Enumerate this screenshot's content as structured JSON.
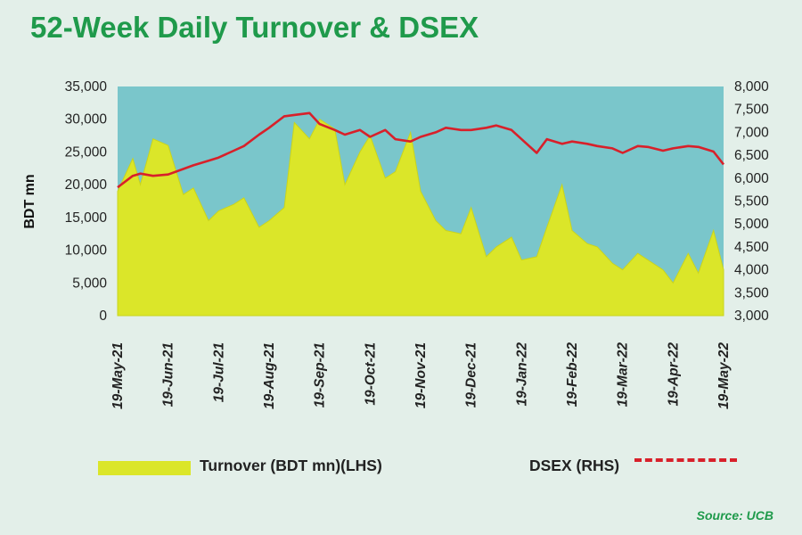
{
  "title": "52-Week Daily Turnover & DSEX",
  "source": "Source: UCB",
  "colors": {
    "background": "#e3efe9",
    "plot_background": "#7ac6cb",
    "turnover_fill": "#dbe629",
    "dsex_line": "#d8202a",
    "title": "#1f9a4b"
  },
  "chart_data": {
    "type": "area",
    "title": "52-Week Daily Turnover & DSEX",
    "ylabel": "BDT mn",
    "ylim": [
      0,
      35000
    ],
    "y2lim": [
      3000,
      8000
    ],
    "yticks": [
      "35,000",
      "30,000",
      "25,000",
      "20,000",
      "15,000",
      "10,000",
      "5,000",
      "0"
    ],
    "y2ticks": [
      "8,000",
      "7,500",
      "7,000",
      "6,500",
      "6,000",
      "5,500",
      "5,000",
      "4,500",
      "4,000",
      "3,500",
      "3,000"
    ],
    "xticks": [
      "19-May-21",
      "19-Jun-21",
      "19-Jul-21",
      "19-Aug-21",
      "19-Sep-21",
      "19-Oct-21",
      "19-Nov-21",
      "19-Dec-21",
      "19-Jan-22",
      "19-Feb-22",
      "19-Mar-22",
      "19-Apr-22",
      "19-May-22"
    ],
    "x_months": [
      0,
      0.3,
      0.45,
      0.7,
      1,
      1.3,
      1.5,
      1.8,
      2,
      2.3,
      2.5,
      2.8,
      3,
      3.3,
      3.5,
      3.8,
      4,
      4.3,
      4.5,
      4.8,
      5,
      5.3,
      5.5,
      5.8,
      6,
      6.3,
      6.5,
      6.8,
      7,
      7.3,
      7.5,
      7.8,
      8,
      8.3,
      8.5,
      8.8,
      9,
      9.3,
      9.5,
      9.8,
      10,
      10.3,
      10.5,
      10.8,
      11,
      11.3,
      11.5,
      11.8,
      12
    ],
    "legend_position": "bottom",
    "series": [
      {
        "name": "Turnover (BDT mn)(LHS)",
        "axis": "left",
        "type": "area",
        "values": [
          19000,
          24000,
          20000,
          27000,
          26000,
          18500,
          19500,
          14500,
          16000,
          17000,
          18000,
          13500,
          14500,
          16500,
          29500,
          27000,
          30000,
          28500,
          20000,
          25000,
          27500,
          21000,
          22000,
          28000,
          19000,
          14500,
          13000,
          12500,
          16500,
          9000,
          10500,
          12000,
          8500,
          9000,
          13500,
          20000,
          13000,
          11000,
          10500,
          8000,
          7000,
          9500,
          8500,
          7000,
          5000,
          9500,
          6500,
          13000,
          7000
        ]
      },
      {
        "name": "DSEX (RHS)",
        "axis": "right",
        "type": "line",
        "values": [
          5800,
          6050,
          6100,
          6050,
          6080,
          6200,
          6280,
          6380,
          6450,
          6600,
          6700,
          6950,
          7100,
          7350,
          7380,
          7420,
          7180,
          7050,
          6950,
          7050,
          6900,
          7050,
          6850,
          6800,
          6900,
          7000,
          7100,
          7050,
          7050,
          7100,
          7150,
          7050,
          6850,
          6550,
          6850,
          6750,
          6800,
          6750,
          6700,
          6650,
          6550,
          6700,
          6680,
          6600,
          6650,
          6700,
          6680,
          6580,
          6300
        ]
      }
    ]
  }
}
